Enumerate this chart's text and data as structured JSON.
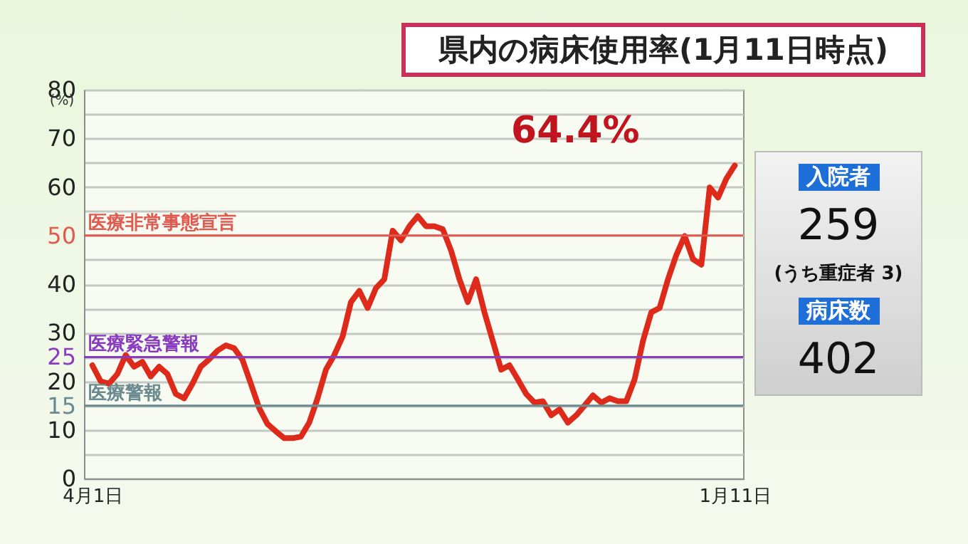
{
  "chart_data": {
    "type": "line",
    "title": "県内の病床使用率(1月11日時点)",
    "ylabel": "(%)",
    "categories": [
      "4月1日",
      null,
      null,
      null,
      null,
      null,
      null,
      null,
      null,
      null,
      null,
      null,
      null,
      null,
      null,
      null,
      null,
      null,
      null,
      null,
      null,
      null,
      null,
      null,
      null,
      null,
      null,
      null,
      null,
      null,
      null,
      null,
      null,
      null,
      null,
      null,
      null,
      null,
      null,
      null,
      null,
      null,
      null,
      null,
      null,
      null,
      null,
      null,
      null,
      null,
      null,
      null,
      null,
      null,
      null,
      null,
      null,
      null,
      null,
      null,
      null,
      null,
      null,
      null,
      null,
      null,
      null,
      null,
      null,
      null,
      null,
      null,
      null,
      null,
      null,
      null,
      null,
      "1月11日"
    ],
    "series": [
      {
        "color": "#dd2a1b",
        "values": [
          23.3,
          20,
          19.5,
          21.5,
          25.4,
          23,
          24,
          21,
          23,
          21.5,
          17.4,
          16.5,
          19.5,
          23,
          24.5,
          26.3,
          27.4,
          26.8,
          24.4,
          19.5,
          14.5,
          11.2,
          9.7,
          8.3,
          8.3,
          8.6,
          11.5,
          16.5,
          22.4,
          25.4,
          29.2,
          36.3,
          38.6,
          35.1,
          39.2,
          41,
          51,
          49,
          51.9,
          54,
          51.9,
          51.9,
          51.3,
          46.9,
          41,
          36.3,
          41,
          34.2,
          28.3,
          22.4,
          23.3,
          20.4,
          17.4,
          15.6,
          15.9,
          13,
          14.2,
          11.5,
          13,
          15,
          17.1,
          15.6,
          16.5,
          15.9,
          15.9,
          20.4,
          28.3,
          34.2,
          35.1,
          41,
          46,
          49.9,
          45.1,
          44,
          59.9,
          57.8,
          61.7,
          64.4
        ]
      }
    ],
    "ylim": [
      0,
      80
    ],
    "yticks": [
      0,
      {
        "value": 5,
        "label": null
      },
      10,
      15,
      20,
      25,
      30,
      {
        "value": 35,
        "label": null
      },
      40,
      {
        "value": 45,
        "label": null
      },
      50,
      {
        "value": 55,
        "label": null
      },
      60,
      {
        "value": 65,
        "label": null
      },
      70,
      {
        "value": 75,
        "label": null
      },
      80
    ],
    "grid": "y",
    "line_style": "solid",
    "ref_lines": [
      {
        "axis": "y",
        "value": 50,
        "label": "医療非常事態宣言",
        "color": "#e05a50"
      },
      {
        "axis": "y",
        "value": 25,
        "label": "医療緊急警報",
        "color": "#8a3cc0"
      },
      {
        "axis": "y",
        "value": 15,
        "label": "医療警報",
        "color": "#6a8a90"
      }
    ],
    "annotations": [
      {
        "text": "64.4%",
        "x": "1月11日",
        "y": 64.4
      },
      "入院者",
      "259",
      "(うち重症者 3)",
      "病床数",
      "402"
    ]
  }
}
